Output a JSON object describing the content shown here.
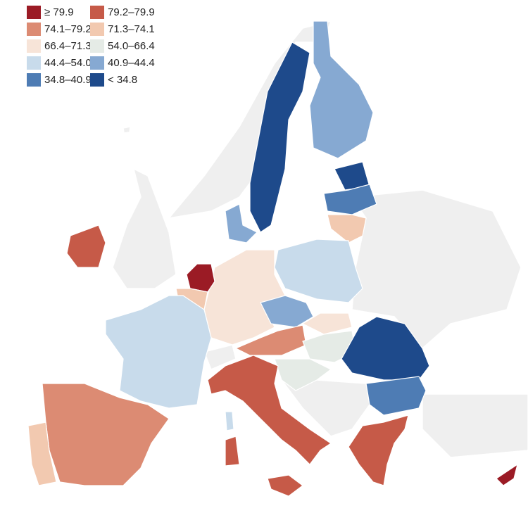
{
  "legend": {
    "items": [
      {
        "label": "≥ 79.9",
        "color": "#9b1b25"
      },
      {
        "label": "79.2–79.9",
        "color": "#c65a48"
      },
      {
        "label": "74.1–79.2",
        "color": "#dc8b73"
      },
      {
        "label": "71.3–74.1",
        "color": "#f2c9b0"
      },
      {
        "label": "66.4–71.3",
        "color": "#f7e4d8"
      },
      {
        "label": "54.0–66.4",
        "color": "#e5ebe6"
      },
      {
        "label": "44.4–54.0",
        "color": "#c8dbeb"
      },
      {
        "label": "40.9–44.4",
        "color": "#86a9d2"
      },
      {
        "label": "34.8–40.9",
        "color": "#4e7cb4"
      },
      {
        "label": "< 34.8",
        "color": "#1e4a8b"
      }
    ]
  }
}
